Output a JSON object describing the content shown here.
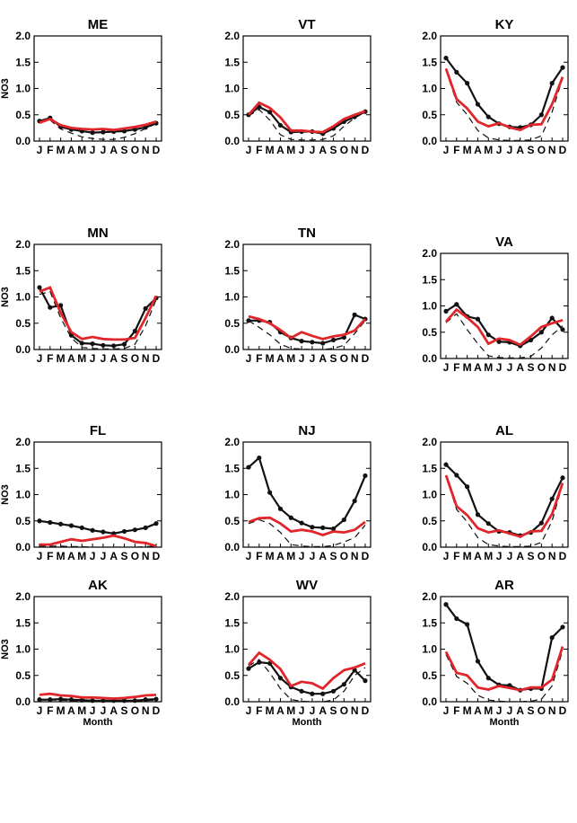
{
  "chart_data": {
    "type": "line",
    "panel_grid": {
      "rows": 4,
      "cols": 3
    },
    "ylabel": "NO3",
    "xlabel": "Month",
    "month_ticks": [
      "J",
      "F",
      "M",
      "A",
      "M",
      "J",
      "J",
      "A",
      "S",
      "O",
      "N",
      "D"
    ],
    "yticks": [
      "0.0",
      "0.5",
      "1.0",
      "1.5",
      "2.0"
    ],
    "ylim": [
      0,
      2
    ],
    "colors": {
      "black_series": "#111111",
      "red_series": "#e0262b",
      "dashed_series": "#111111"
    },
    "panels": [
      {
        "title": "ME",
        "black": [
          0.38,
          0.44,
          0.27,
          0.22,
          0.19,
          0.16,
          0.17,
          0.18,
          0.19,
          0.22,
          0.26,
          0.34
        ],
        "red": [
          0.35,
          0.42,
          0.3,
          0.25,
          0.23,
          0.22,
          0.23,
          0.21,
          0.24,
          0.27,
          0.31,
          0.37
        ],
        "dashed": [
          0.34,
          0.4,
          0.23,
          0.15,
          0.08,
          0.05,
          0.03,
          0.03,
          0.07,
          0.14,
          0.24,
          0.33
        ]
      },
      {
        "title": "VT",
        "black": [
          0.5,
          0.65,
          0.55,
          0.3,
          0.17,
          0.18,
          0.18,
          0.14,
          0.24,
          0.37,
          0.46,
          0.56
        ],
        "red": [
          0.5,
          0.73,
          0.63,
          0.45,
          0.2,
          0.2,
          0.18,
          0.17,
          0.28,
          0.42,
          0.5,
          0.57
        ],
        "dashed": [
          0.48,
          0.6,
          0.4,
          0.12,
          0.03,
          0.02,
          0.02,
          0.03,
          0.1,
          0.28,
          0.44,
          0.55
        ]
      },
      {
        "title": "KY",
        "black": [
          1.58,
          1.31,
          1.1,
          0.7,
          0.46,
          0.33,
          0.27,
          0.26,
          0.31,
          0.5,
          1.1,
          1.4
        ],
        "red": [
          1.38,
          0.8,
          0.62,
          0.37,
          0.28,
          0.34,
          0.26,
          0.21,
          0.31,
          0.32,
          0.7,
          1.22
        ],
        "dashed": [
          1.35,
          0.74,
          0.5,
          0.2,
          0.06,
          0.02,
          0.01,
          0.01,
          0.02,
          0.1,
          0.55,
          1.2
        ]
      },
      {
        "title": "MN",
        "black": [
          1.18,
          0.8,
          0.84,
          0.27,
          0.12,
          0.11,
          0.08,
          0.07,
          0.1,
          0.35,
          0.78,
          0.98
        ],
        "red": [
          1.1,
          1.18,
          0.7,
          0.33,
          0.2,
          0.24,
          0.2,
          0.19,
          0.19,
          0.22,
          0.6,
          1.02
        ],
        "dashed": [
          1.05,
          1.1,
          0.6,
          0.22,
          0.04,
          0.02,
          0.01,
          0.01,
          0.02,
          0.1,
          0.45,
          0.95
        ]
      },
      {
        "title": "TN",
        "black": [
          0.55,
          0.55,
          0.52,
          0.33,
          0.22,
          0.16,
          0.14,
          0.12,
          0.18,
          0.23,
          0.66,
          0.58
        ],
        "red": [
          0.63,
          0.58,
          0.5,
          0.37,
          0.22,
          0.33,
          0.26,
          0.2,
          0.25,
          0.28,
          0.36,
          0.58
        ],
        "dashed": [
          0.55,
          0.42,
          0.28,
          0.1,
          0.02,
          0.01,
          0.0,
          0.0,
          0.02,
          0.08,
          0.3,
          0.55
        ]
      },
      {
        "title": "VA",
        "black": [
          0.9,
          1.03,
          0.8,
          0.75,
          0.45,
          0.32,
          0.31,
          0.24,
          0.35,
          0.5,
          0.77,
          0.55
        ],
        "red": [
          0.7,
          0.93,
          0.78,
          0.6,
          0.28,
          0.38,
          0.35,
          0.26,
          0.42,
          0.6,
          0.67,
          0.73
        ],
        "dashed": [
          0.68,
          0.85,
          0.55,
          0.28,
          0.05,
          0.02,
          0.01,
          0.01,
          0.04,
          0.2,
          0.45,
          0.62
        ]
      },
      {
        "title": "FL",
        "black": [
          0.5,
          0.47,
          0.44,
          0.41,
          0.37,
          0.32,
          0.29,
          0.26,
          0.3,
          0.33,
          0.37,
          0.45
        ],
        "red": [
          0.05,
          0.05,
          0.1,
          0.15,
          0.12,
          0.15,
          0.18,
          0.22,
          0.17,
          0.1,
          0.08,
          0.02
        ],
        "dashed": [
          0.02,
          0.02,
          0.02,
          0.01,
          0.01,
          0.0,
          0.0,
          0.0,
          0.0,
          0.0,
          0.01,
          0.02
        ]
      },
      {
        "title": "NJ",
        "black": [
          1.52,
          1.7,
          1.04,
          0.73,
          0.56,
          0.46,
          0.38,
          0.37,
          0.35,
          0.52,
          0.88,
          1.36
        ],
        "red": [
          0.48,
          0.55,
          0.56,
          0.45,
          0.3,
          0.33,
          0.3,
          0.23,
          0.3,
          0.28,
          0.33,
          0.48
        ],
        "dashed": [
          0.45,
          0.52,
          0.45,
          0.28,
          0.05,
          0.02,
          0.01,
          0.01,
          0.03,
          0.1,
          0.18,
          0.42
        ]
      },
      {
        "title": "AL",
        "black": [
          1.57,
          1.37,
          1.15,
          0.62,
          0.45,
          0.3,
          0.28,
          0.22,
          0.28,
          0.46,
          0.92,
          1.32
        ],
        "red": [
          1.37,
          0.78,
          0.61,
          0.36,
          0.28,
          0.32,
          0.26,
          0.2,
          0.3,
          0.31,
          0.63,
          1.22
        ],
        "dashed": [
          1.35,
          0.72,
          0.48,
          0.18,
          0.05,
          0.02,
          0.01,
          0.01,
          0.02,
          0.09,
          0.5,
          1.2
        ]
      },
      {
        "title": "AK",
        "black": [
          0.04,
          0.04,
          0.05,
          0.04,
          0.03,
          0.02,
          0.02,
          0.02,
          0.02,
          0.02,
          0.04,
          0.05
        ],
        "red": [
          0.13,
          0.15,
          0.12,
          0.11,
          0.08,
          0.08,
          0.07,
          0.06,
          0.07,
          0.09,
          0.12,
          0.13
        ],
        "dashed": [
          0.03,
          0.03,
          0.03,
          0.02,
          0.01,
          0.01,
          0.0,
          0.0,
          0.01,
          0.01,
          0.02,
          0.03
        ]
      },
      {
        "title": "WV",
        "black": [
          0.63,
          0.75,
          0.73,
          0.45,
          0.28,
          0.2,
          0.15,
          0.15,
          0.2,
          0.33,
          0.6,
          0.4
        ],
        "red": [
          0.7,
          0.93,
          0.8,
          0.62,
          0.3,
          0.38,
          0.35,
          0.25,
          0.45,
          0.6,
          0.65,
          0.73
        ],
        "dashed": [
          0.68,
          0.8,
          0.55,
          0.25,
          0.04,
          0.01,
          0.0,
          0.0,
          0.03,
          0.2,
          0.5,
          0.65
        ]
      },
      {
        "title": "AR",
        "black": [
          1.85,
          1.58,
          1.47,
          0.77,
          0.45,
          0.32,
          0.31,
          0.22,
          0.25,
          0.25,
          1.22,
          1.42
        ],
        "red": [
          0.95,
          0.55,
          0.5,
          0.27,
          0.23,
          0.3,
          0.26,
          0.22,
          0.27,
          0.27,
          0.42,
          1.05
        ],
        "dashed": [
          0.9,
          0.48,
          0.35,
          0.12,
          0.03,
          0.01,
          0.0,
          0.0,
          0.01,
          0.05,
          0.3,
          0.98
        ]
      }
    ]
  }
}
